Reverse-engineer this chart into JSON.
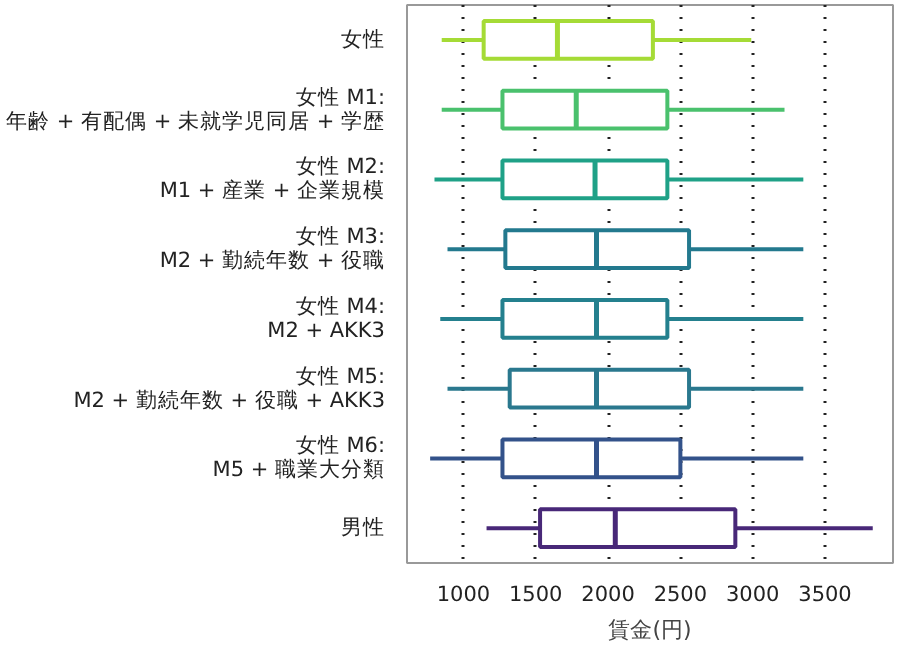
{
  "chart_data": {
    "type": "box",
    "orientation": "horizontal",
    "xlabel": "賃金(円)",
    "categories": [
      "女性",
      "女性 M1:\n年齢 + 有配偶 + 未就学児同居 + 学歴",
      "女性 M2:\nM1 + 産業 + 企業規模",
      "女性 M3:\nM2 + 勤続年数 + 役職",
      "女性 M4:\nM2 + AKK3",
      "女性 M5:\nM2 + 勤続年数 + 役職 + AKK3",
      "女性 M6:\nM5 + 職業大分類",
      "男性"
    ],
    "colors": [
      "#a5db36",
      "#4ac16d",
      "#1fa187",
      "#23798e",
      "#24808e",
      "#2a788e",
      "#33528a",
      "#482878"
    ],
    "boxes": [
      {
        "low": 850,
        "q1": 1140,
        "median": 1650,
        "q3": 2310,
        "high": 2990
      },
      {
        "low": 850,
        "q1": 1270,
        "median": 1780,
        "q3": 2410,
        "high": 3220
      },
      {
        "low": 800,
        "q1": 1270,
        "median": 1910,
        "q3": 2410,
        "high": 3350
      },
      {
        "low": 890,
        "q1": 1290,
        "median": 1920,
        "q3": 2560,
        "high": 3350
      },
      {
        "low": 840,
        "q1": 1270,
        "median": 1920,
        "q3": 2410,
        "high": 3350
      },
      {
        "low": 890,
        "q1": 1320,
        "median": 1920,
        "q3": 2560,
        "high": 3350
      },
      {
        "low": 770,
        "q1": 1270,
        "median": 1920,
        "q3": 2500,
        "high": 3350
      },
      {
        "low": 1160,
        "q1": 1530,
        "median": 2050,
        "q3": 2880,
        "high": 3830
      }
    ],
    "xlim": [
      610,
      3970
    ],
    "xticks": [
      1000,
      1500,
      2000,
      2500,
      3000,
      3500
    ],
    "grid": "x"
  }
}
